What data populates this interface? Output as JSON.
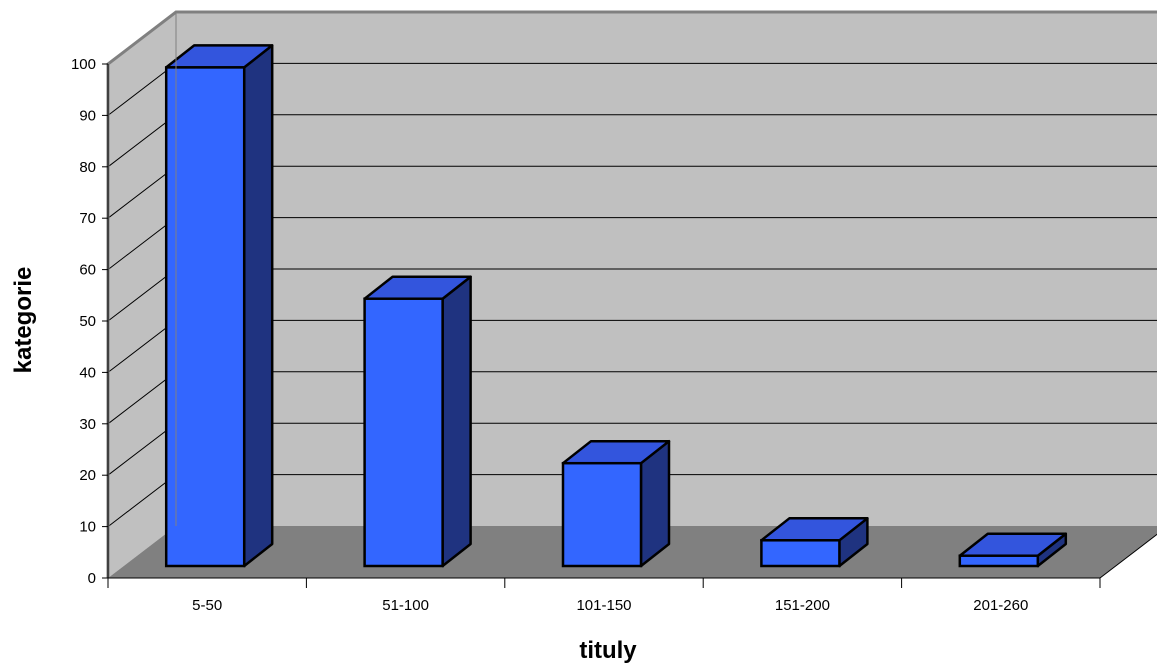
{
  "chart_data": {
    "type": "bar",
    "style": "3d-column",
    "categories": [
      "5-50",
      "51-100",
      "101-150",
      "151-200",
      "201-260"
    ],
    "values": [
      97,
      52,
      20,
      5,
      2
    ],
    "title": "",
    "xlabel": "tituly",
    "ylabel": "kategorie",
    "ylim": [
      0,
      100
    ],
    "yticks": [
      0,
      10,
      20,
      30,
      40,
      50,
      60,
      70,
      80,
      90,
      100
    ],
    "grid": true,
    "legend": "none",
    "colors": {
      "bar_front": "#3366ff",
      "bar_side": "#1f3380",
      "bar_top": "#3355dd",
      "wall": "#c0c0c0",
      "floor": "#808080",
      "gridline": "#000000"
    }
  }
}
